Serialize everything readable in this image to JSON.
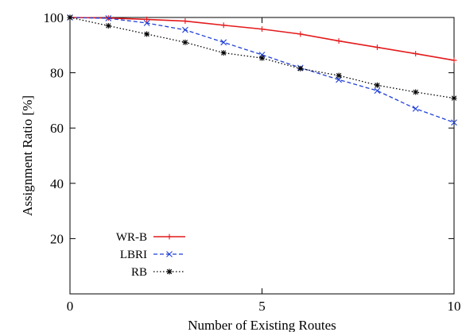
{
  "chart_data": {
    "type": "line",
    "title": "",
    "xlabel": "Number of Existing Routes",
    "ylabel": "Assignment Ratio [%]",
    "xlim": [
      0,
      10
    ],
    "ylim": [
      0,
      100
    ],
    "xticks": [
      0,
      5,
      10
    ],
    "yticks": [
      20,
      40,
      60,
      80,
      100
    ],
    "x": [
      0,
      1,
      2,
      3,
      4,
      5,
      6,
      7,
      8,
      9,
      10
    ],
    "grid": false,
    "legend_position": "bottom-left",
    "series": [
      {
        "name": "WR-B",
        "color": "#e41a1c",
        "dash": "solid",
        "marker": "plus",
        "values": [
          100,
          99.8,
          99.3,
          98.7,
          97.2,
          95.8,
          94.0,
          91.5,
          89.2,
          86.9,
          84.5
        ]
      },
      {
        "name": "LBRI",
        "color": "#1f3fd6",
        "dash": "dashed",
        "marker": "cross",
        "values": [
          100,
          99.7,
          98.0,
          95.5,
          91.0,
          86.5,
          81.8,
          77.5,
          73.5,
          67.0,
          62.0
        ]
      },
      {
        "name": "RB",
        "color": "#000000",
        "dash": "dotted",
        "marker": "star",
        "values": [
          100,
          97.0,
          94.0,
          91.0,
          87.2,
          85.3,
          81.5,
          79.0,
          75.5,
          73.0,
          70.8
        ]
      }
    ]
  }
}
